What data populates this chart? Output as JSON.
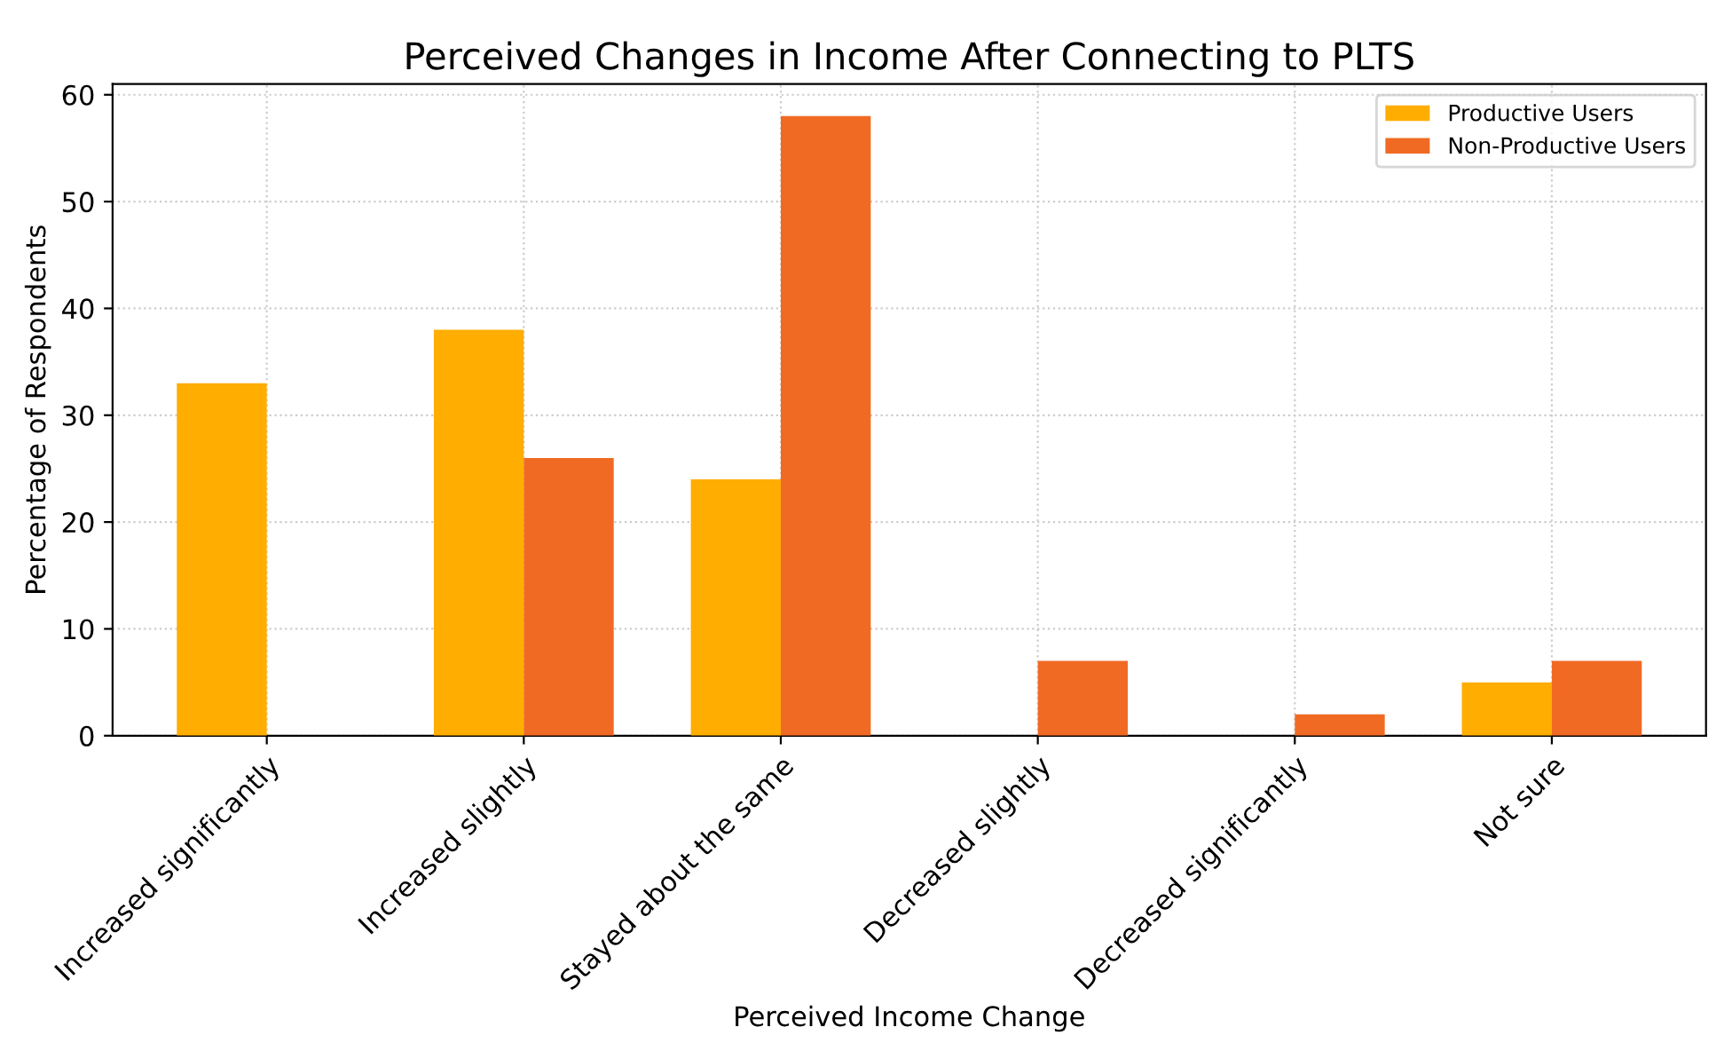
{
  "chart_data": {
    "type": "bar",
    "title": "Perceived Changes in Income After Connecting to PLTS",
    "xlabel": "Perceived Income Change",
    "ylabel": "Percentage of Respondents",
    "categories": [
      "Increased significantly",
      "Increased slightly",
      "Stayed about the same",
      "Decreased slightly",
      "Decreased significantly",
      "Not sure"
    ],
    "series": [
      {
        "name": "Productive Users",
        "color": "#ffad00",
        "values": [
          33,
          38,
          24,
          0,
          0,
          5
        ]
      },
      {
        "name": "Non-Productive Users",
        "color": "#f06a24",
        "values": [
          0,
          26,
          58,
          7,
          2,
          7
        ]
      }
    ],
    "ylim": [
      0,
      61
    ],
    "yticks": [
      0,
      10,
      20,
      30,
      40,
      50,
      60
    ],
    "grid": true,
    "legend": "top right"
  }
}
